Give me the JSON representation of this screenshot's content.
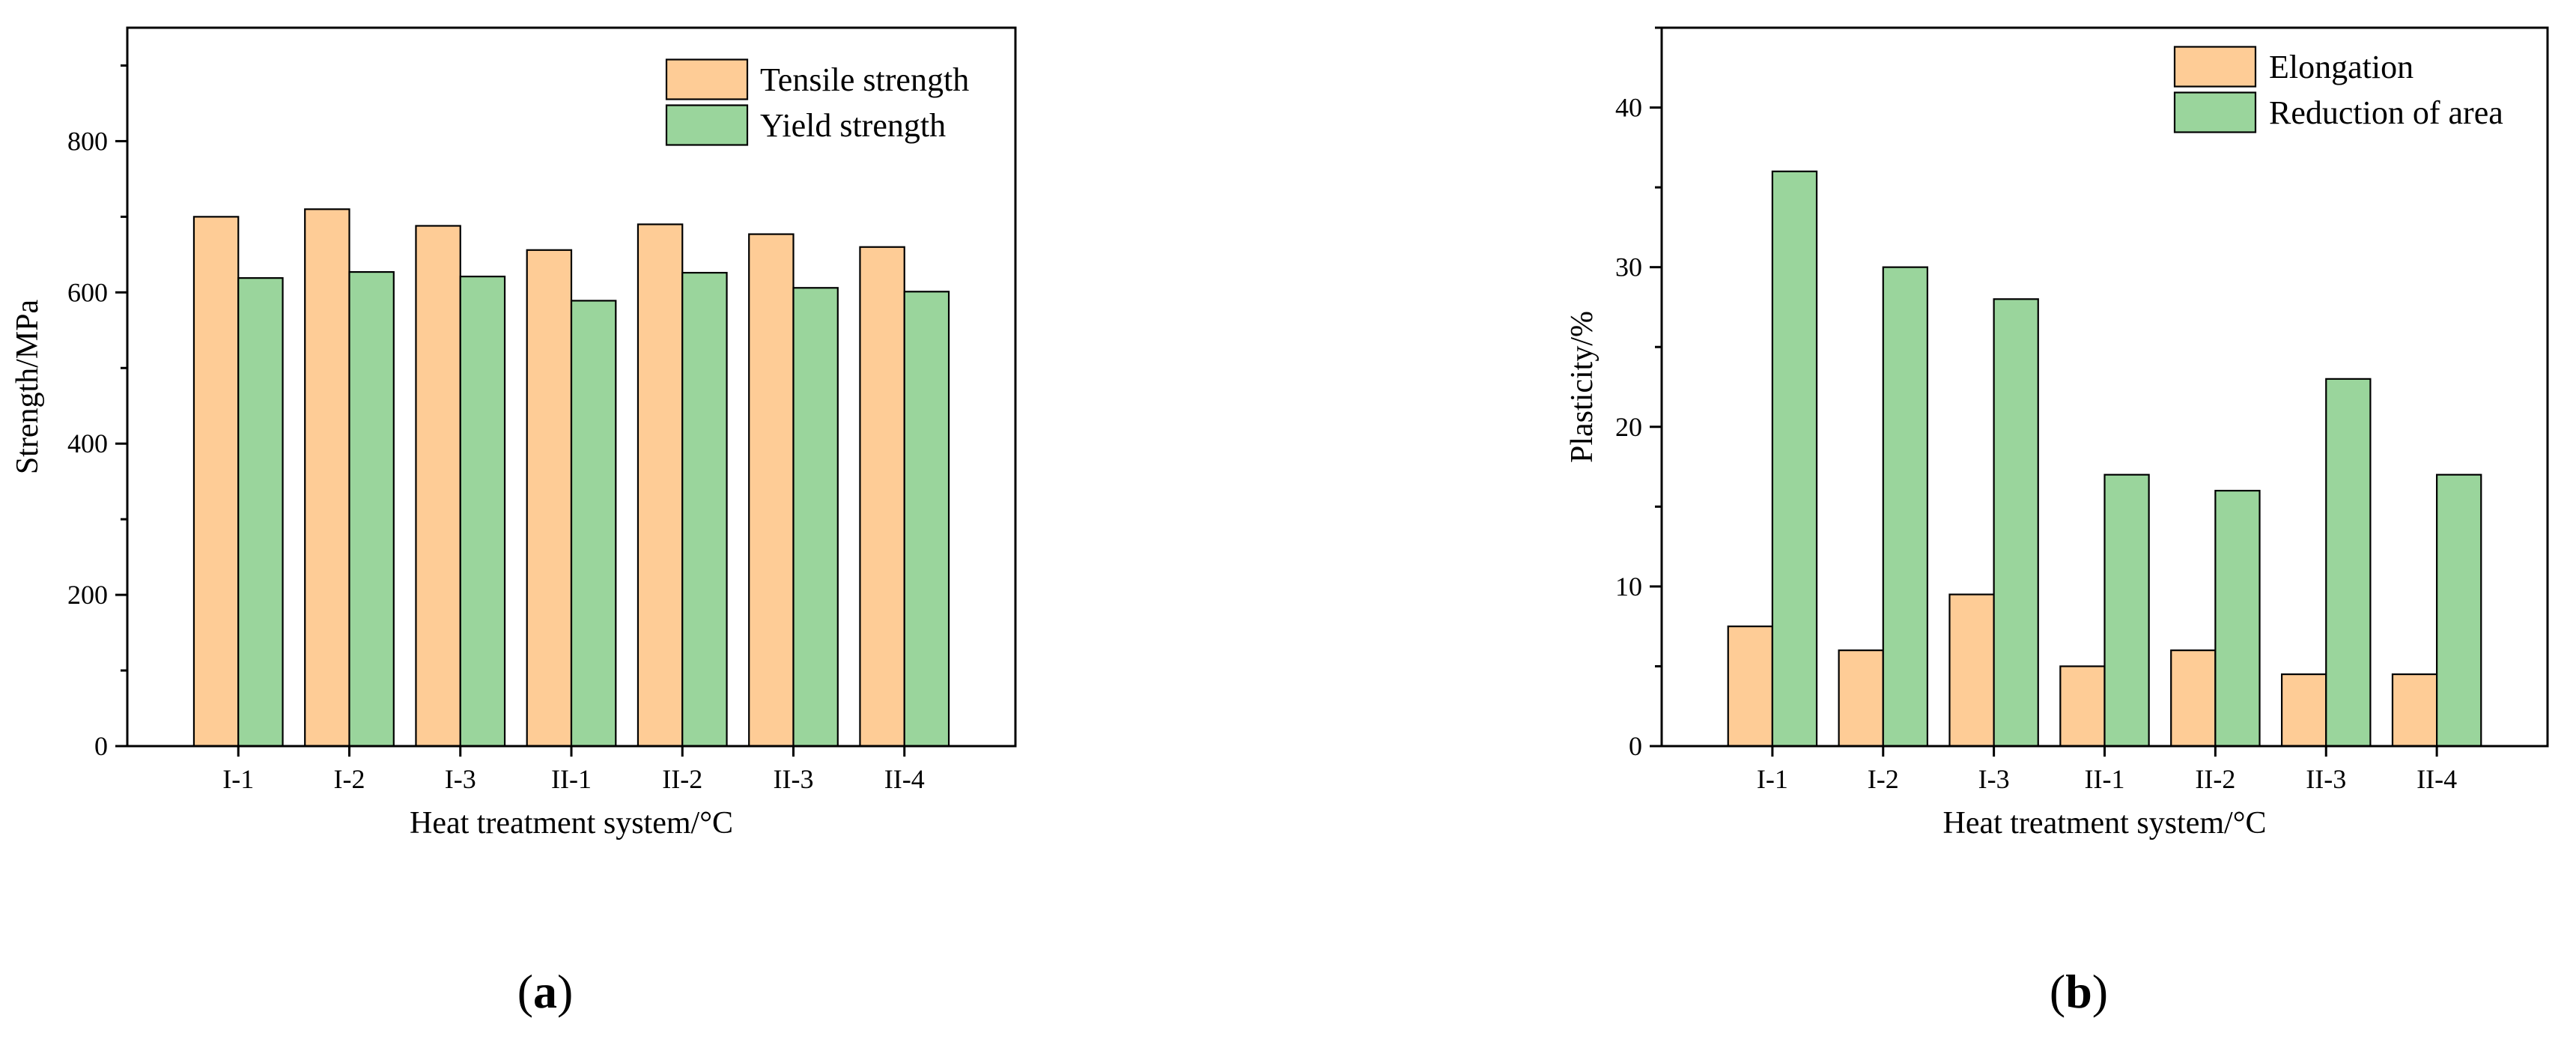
{
  "chart_data": [
    {
      "panel": "(a)",
      "panel_letter": "a",
      "type": "bar",
      "xlabel": "Heat treatment system/°C",
      "ylabel": "Strength/MPa",
      "categories": [
        "I-1",
        "I-2",
        "I-3",
        "II-1",
        "II-2",
        "II-3",
        "II-4"
      ],
      "ylim": [
        0,
        950
      ],
      "yticks": [
        0,
        200,
        400,
        600,
        800
      ],
      "legend_position": "top-right",
      "series": [
        {
          "name": "Tensile strength",
          "color": "#FECC96",
          "values": [
            700,
            710,
            688,
            656,
            690,
            677,
            660
          ]
        },
        {
          "name": "Yield strength",
          "color": "#9AD59C",
          "values": [
            619,
            627,
            621,
            589,
            626,
            606,
            601
          ]
        }
      ]
    },
    {
      "panel": "(b)",
      "panel_letter": "b",
      "type": "bar",
      "xlabel": "Heat treatment system/°C",
      "ylabel": "Plasticity/%",
      "categories": [
        "I-1",
        "I-2",
        "I-3",
        "II-1",
        "II-2",
        "II-3",
        "II-4"
      ],
      "ylim": [
        0,
        45
      ],
      "yticks": [
        0,
        10,
        20,
        30,
        40
      ],
      "legend_position": "top-right",
      "series": [
        {
          "name": "Elongation",
          "color": "#FECC96",
          "values": [
            7.5,
            6,
            9.5,
            5,
            6,
            4.5,
            4.5
          ]
        },
        {
          "name": "Reduction of area",
          "color": "#9AD59C",
          "values": [
            36,
            30,
            28,
            17,
            16,
            23,
            17
          ]
        }
      ]
    }
  ]
}
